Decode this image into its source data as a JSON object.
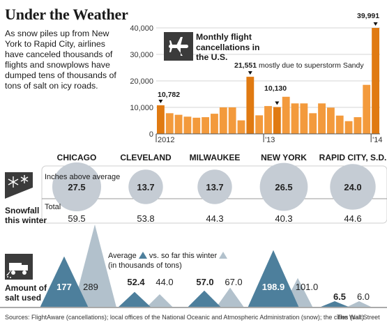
{
  "header": {
    "title": "Under the Weather",
    "intro": "As snow piles up from New York to Rapid City, airlines have canceled thousands of flights and snowplows have dumped tens of thousands of tons of salt on icy roads."
  },
  "colors": {
    "orange": "#f39a3c",
    "orange_dark": "#e07a12",
    "grid": "#c8c8c8",
    "circle": "#c5ccd4",
    "salt_dark": "#4d7f9c",
    "salt_light": "#b2c1cc",
    "icon_bg": "#3b3b3b"
  },
  "icons": {
    "flight": "airplane-icon",
    "snowfall": "snowflake-icon",
    "salt": "salt-truck-icon"
  },
  "flights": {
    "label": "Monthly flight cancellations in the U.S.",
    "peaks": [
      {
        "value": "10,782",
        "note": ""
      },
      {
        "value": "21,551",
        "note": "mostly due to superstorm Sandy"
      },
      {
        "value": "10,130",
        "note": ""
      },
      {
        "value": "39,991",
        "note": ""
      }
    ]
  },
  "chart_data": {
    "type": "bar",
    "title": "Monthly flight cancellations in the U.S.",
    "x_tick_labels": [
      "2012",
      "'13",
      "'14"
    ],
    "y_ticks": [
      "0",
      "10,000",
      "20,000",
      "30,000",
      "40,000"
    ],
    "ylim": [
      0,
      40000
    ],
    "grid": true,
    "values": [
      10782,
      7800,
      7200,
      6500,
      6100,
      6300,
      7600,
      10000,
      10000,
      5100,
      21551,
      7000,
      10500,
      10130,
      14000,
      11500,
      11500,
      7800,
      11500,
      9900,
      6900,
      4800,
      6300,
      18500,
      39991
    ],
    "highlighted": [
      0,
      10,
      13,
      24
    ]
  },
  "cities": [
    "CHICAGO",
    "CLEVELAND",
    "MILWAUKEE",
    "NEW YORK",
    "RAPID CITY, S.D."
  ],
  "snowfall": {
    "label": "Snowfall this winter",
    "above_label": "Inches above average",
    "total_label": "Total",
    "above": [
      "27.5",
      "13.7",
      "13.7",
      "26.5",
      "24.0"
    ],
    "totals": [
      "59.5",
      "53.8",
      "44.3",
      "40.3",
      "44.6"
    ]
  },
  "salt": {
    "label": "Amount of salt used",
    "legend": {
      "average": "Average",
      "vs": "vs. so far this winter",
      "units": "(in thousands of tons)"
    },
    "average": [
      "177",
      "52.4",
      "57.0",
      "198.9",
      "6.5"
    ],
    "this_winter": [
      "289",
      "44.0",
      "67.0",
      "101.0",
      "6.0"
    ],
    "average_values": [
      177,
      52.4,
      57.0,
      198.9,
      6.5
    ],
    "this_winter_values": [
      289,
      44.0,
      67.0,
      101.0,
      6.0
    ]
  },
  "footer": {
    "sources": "Sources: FlightAware (cancellations); local offices of the National Oceanic and Atmospheric Administration (snow); the cities (salt)",
    "credit": "The Wall Street"
  }
}
